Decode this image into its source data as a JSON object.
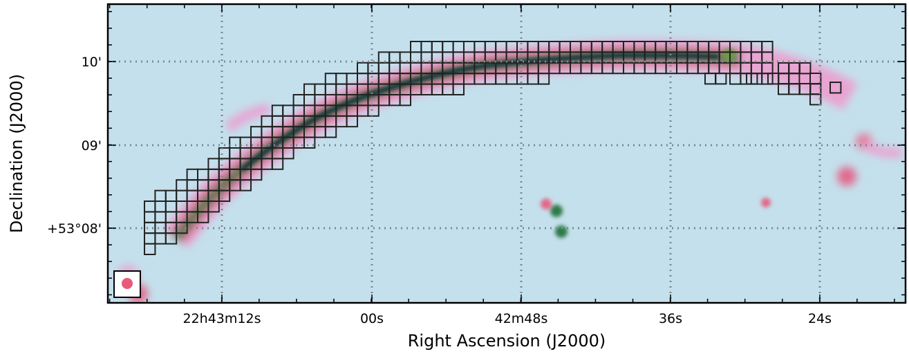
{
  "x_axis": {
    "label": "Right Ascension (J2000)",
    "ticks": [
      "22h43m12s",
      "00s",
      "42m48s",
      "36s",
      "24s"
    ]
  },
  "y_axis": {
    "label": "Declination (J2000)",
    "ticks": [
      "10'",
      "09'",
      "+53°08'"
    ]
  }
}
